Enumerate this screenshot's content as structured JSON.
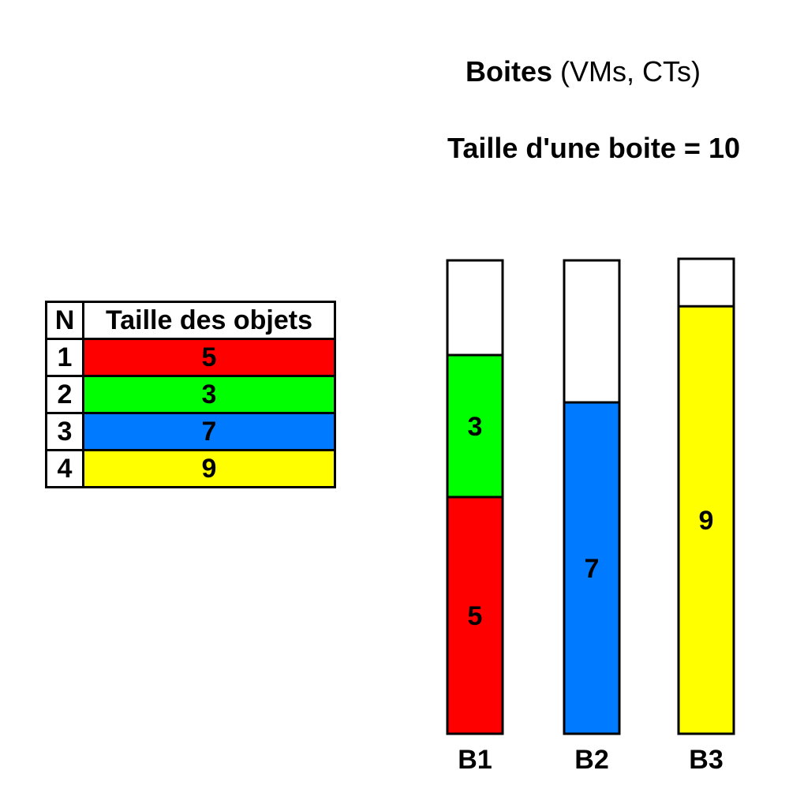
{
  "header": {
    "title_bold": "Boites",
    "title_rest": " (VMs, CTs)",
    "subtitle": "Taille d'une boite = 10"
  },
  "table": {
    "headers": [
      "N",
      "Taille des objets"
    ],
    "rows": [
      {
        "n": "1",
        "size": "5",
        "color": "#ff0000"
      },
      {
        "n": "2",
        "size": "3",
        "color": "#00ff00"
      },
      {
        "n": "3",
        "size": "7",
        "color": "#007bff"
      },
      {
        "n": "4",
        "size": "9",
        "color": "#ffff00"
      }
    ]
  },
  "boxes": {
    "capacity": 10,
    "items": [
      {
        "label": "B1",
        "segments": [
          {
            "value": 5,
            "color": "#ff0000"
          },
          {
            "value": 3,
            "color": "#00ff00"
          }
        ]
      },
      {
        "label": "B2",
        "segments": [
          {
            "value": 7,
            "color": "#007bff"
          }
        ]
      },
      {
        "label": "B3",
        "segments": [
          {
            "value": 9,
            "color": "#ffff00"
          }
        ]
      }
    ]
  }
}
